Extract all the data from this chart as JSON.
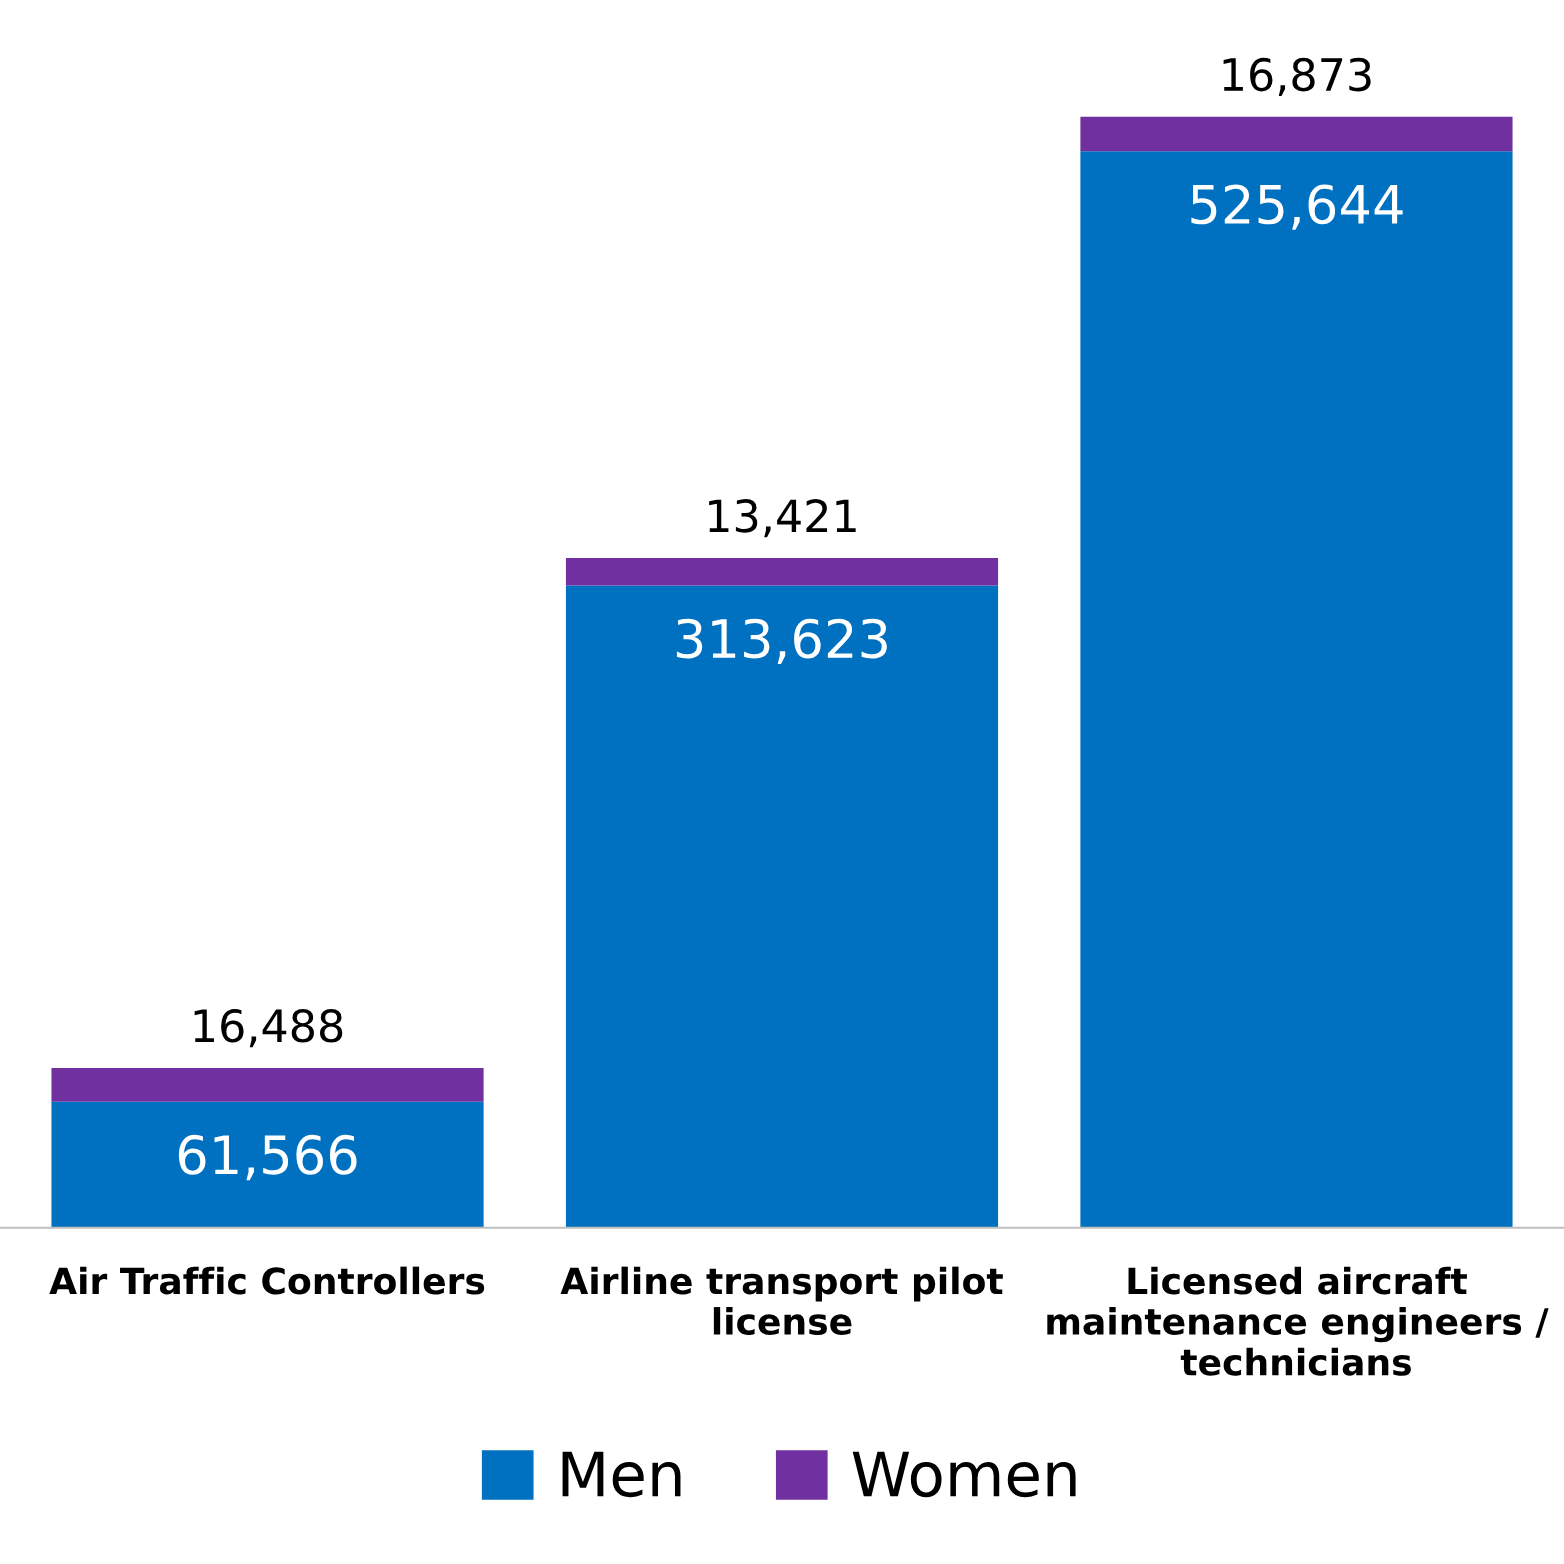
{
  "chart_data": {
    "type": "bar",
    "stacked": true,
    "categories": [
      "Air Traffic Controllers",
      "Airline transport pilot\nlicense",
      "Licensed aircraft\nmaintenance engineers /\ntechnicians"
    ],
    "series": [
      {
        "name": "Men",
        "color": "#0070c0",
        "values": [
          61566,
          313623,
          525644
        ],
        "value_labels": [
          "61,566",
          "313,623",
          "525,644"
        ]
      },
      {
        "name": "Women",
        "color": "#7030a0",
        "values": [
          16488,
          13421,
          16873
        ],
        "value_labels": [
          "16,488",
          "13,421",
          "16,873"
        ]
      }
    ],
    "legend": "bottom",
    "grid": false,
    "tick_labels": "x"
  }
}
